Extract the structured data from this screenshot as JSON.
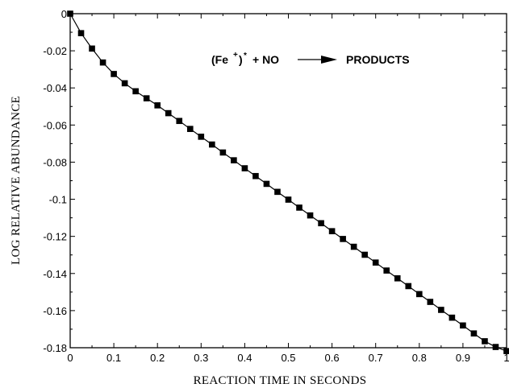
{
  "chart_data": {
    "type": "line",
    "title": "",
    "xlabel": "REACTION TIME IN SECONDS",
    "ylabel": "LOG RELATIVE ABUNDANCE",
    "xlim": [
      0,
      1
    ],
    "ylim": [
      -0.18,
      0
    ],
    "x_ticks": [
      0,
      0.1,
      0.2,
      0.3,
      0.4,
      0.5,
      0.6,
      0.7,
      0.8,
      0.9,
      1
    ],
    "x_tick_labels": [
      "0",
      "0.1",
      "0.2",
      "0.3",
      "0.4",
      "0.5",
      "0.6",
      "0.7",
      "0.8",
      "0.9",
      "1"
    ],
    "y_ticks": [
      0,
      -0.02,
      -0.04,
      -0.06,
      -0.08,
      -0.1,
      -0.12,
      -0.14,
      -0.16,
      -0.18
    ],
    "y_tick_labels": [
      "0",
      "-0.02",
      "-0.04",
      "-0.06",
      "-0.08",
      "-0.1",
      "-0.12",
      "-0.14",
      "-0.16",
      "-0.18"
    ],
    "grid": false,
    "marker": "square",
    "series": [
      {
        "x": [
          0,
          0.025,
          0.05,
          0.075,
          0.1,
          0.125,
          0.15,
          0.175,
          0.2,
          0.225,
          0.25,
          0.275,
          0.3,
          0.325,
          0.35,
          0.375,
          0.4,
          0.425,
          0.45,
          0.475,
          0.5,
          0.525,
          0.55,
          0.575,
          0.6,
          0.625,
          0.65,
          0.675,
          0.7,
          0.725,
          0.75,
          0.775,
          0.8,
          0.825,
          0.85,
          0.875,
          0.9,
          0.925,
          0.95,
          0.975,
          1.0
        ],
        "y": [
          0,
          -0.0105,
          -0.0188,
          -0.0263,
          -0.0325,
          -0.0375,
          -0.0418,
          -0.0456,
          -0.0494,
          -0.0536,
          -0.0578,
          -0.0621,
          -0.0663,
          -0.0705,
          -0.0748,
          -0.079,
          -0.0833,
          -0.0875,
          -0.0917,
          -0.096,
          -0.1002,
          -0.1045,
          -0.1087,
          -0.1129,
          -0.1172,
          -0.1214,
          -0.1256,
          -0.1299,
          -0.1341,
          -0.1384,
          -0.1426,
          -0.1468,
          -0.1511,
          -0.1553,
          -0.1596,
          -0.1638,
          -0.168,
          -0.1723,
          -0.1765,
          -0.1796,
          -0.1818
        ]
      }
    ],
    "annotation": {
      "lhs_open": "(Fe",
      "lhs_sup": "+",
      "lhs_close": ")",
      "lhs_star": "*",
      "plus_reactant": "+ NO",
      "arrow": "→",
      "products": "PRODUCTS"
    }
  }
}
